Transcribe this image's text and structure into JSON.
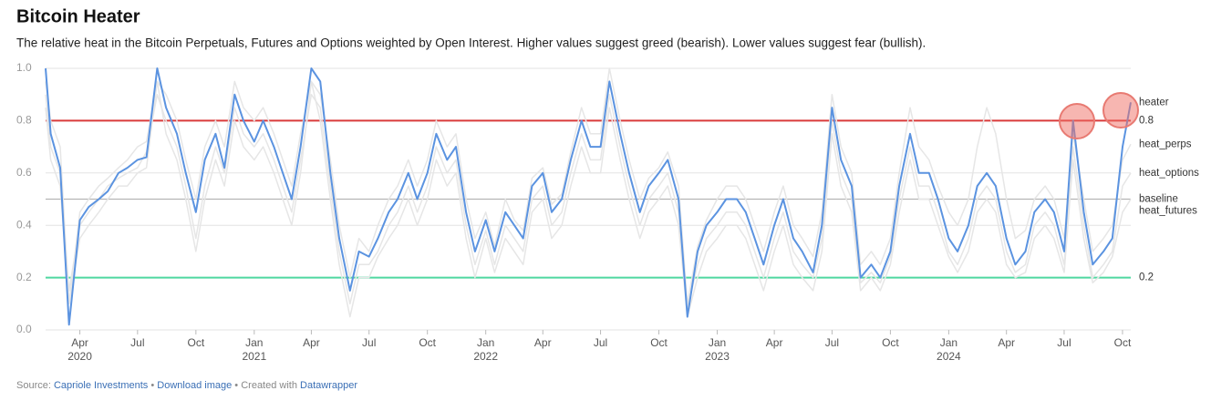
{
  "chart_data": {
    "type": "line",
    "title": "Bitcoin Heater",
    "subtitle": "The relative heat in the Bitcoin Perpetuals, Futures and Options weighted by Open Interest. Higher values suggest greed (bearish). Lower values suggest fear (bullish).",
    "x": [
      "2020-02-07",
      "2020-02-15",
      "2020-03-01",
      "2020-03-15",
      "2020-04-01",
      "2020-04-15",
      "2020-05-01",
      "2020-05-15",
      "2020-06-01",
      "2020-06-15",
      "2020-07-01",
      "2020-07-15",
      "2020-08-01",
      "2020-08-15",
      "2020-09-01",
      "2020-09-15",
      "2020-10-01",
      "2020-10-15",
      "2020-11-01",
      "2020-11-15",
      "2020-12-01",
      "2020-12-15",
      "2021-01-01",
      "2021-01-15",
      "2021-02-01",
      "2021-02-15",
      "2021-03-01",
      "2021-03-15",
      "2021-04-01",
      "2021-04-15",
      "2021-05-01",
      "2021-05-15",
      "2021-06-01",
      "2021-06-15",
      "2021-07-01",
      "2021-07-15",
      "2021-08-01",
      "2021-08-15",
      "2021-09-01",
      "2021-09-15",
      "2021-10-01",
      "2021-10-15",
      "2021-11-01",
      "2021-11-15",
      "2021-12-01",
      "2021-12-15",
      "2022-01-01",
      "2022-01-15",
      "2022-02-01",
      "2022-02-15",
      "2022-03-01",
      "2022-03-15",
      "2022-04-01",
      "2022-04-15",
      "2022-05-01",
      "2022-05-15",
      "2022-06-01",
      "2022-06-15",
      "2022-07-01",
      "2022-07-15",
      "2022-08-01",
      "2022-08-15",
      "2022-09-01",
      "2022-09-15",
      "2022-10-01",
      "2022-10-15",
      "2022-11-01",
      "2022-11-15",
      "2022-12-01",
      "2022-12-15",
      "2023-01-01",
      "2023-01-15",
      "2023-02-01",
      "2023-02-15",
      "2023-03-01",
      "2023-03-15",
      "2023-04-01",
      "2023-04-15",
      "2023-05-01",
      "2023-05-15",
      "2023-06-01",
      "2023-06-15",
      "2023-07-01",
      "2023-07-15",
      "2023-08-01",
      "2023-08-15",
      "2023-09-01",
      "2023-09-15",
      "2023-10-01",
      "2023-10-15",
      "2023-11-01",
      "2023-11-15",
      "2023-12-01",
      "2023-12-15",
      "2024-01-01",
      "2024-01-15",
      "2024-02-01",
      "2024-02-15",
      "2024-03-01",
      "2024-03-15",
      "2024-04-01",
      "2024-04-15",
      "2024-05-01",
      "2024-05-15",
      "2024-06-01",
      "2024-06-15",
      "2024-07-01",
      "2024-07-15",
      "2024-08-01",
      "2024-08-15",
      "2024-09-01",
      "2024-09-15",
      "2024-10-01",
      "2024-10-14"
    ],
    "series": [
      {
        "name": "heat_perps",
        "color": "#e6e6e6",
        "values": [
          0.95,
          0.8,
          0.7,
          0.1,
          0.45,
          0.5,
          0.55,
          0.58,
          0.62,
          0.65,
          0.7,
          0.72,
          0.95,
          0.9,
          0.8,
          0.65,
          0.5,
          0.7,
          0.8,
          0.7,
          0.95,
          0.85,
          0.8,
          0.85,
          0.75,
          0.65,
          0.55,
          0.75,
          0.95,
          0.9,
          0.65,
          0.4,
          0.2,
          0.35,
          0.3,
          0.4,
          0.5,
          0.55,
          0.65,
          0.55,
          0.65,
          0.8,
          0.7,
          0.75,
          0.5,
          0.35,
          0.45,
          0.32,
          0.5,
          0.42,
          0.38,
          0.58,
          0.62,
          0.48,
          0.52,
          0.68,
          0.85,
          0.75,
          0.75,
          1.0,
          0.8,
          0.65,
          0.5,
          0.58,
          0.62,
          0.68,
          0.55,
          0.1,
          0.32,
          0.42,
          0.5,
          0.55,
          0.55,
          0.5,
          0.4,
          0.3,
          0.45,
          0.55,
          0.4,
          0.35,
          0.28,
          0.45,
          0.9,
          0.7,
          0.6,
          0.25,
          0.3,
          0.25,
          0.35,
          0.6,
          0.85,
          0.7,
          0.65,
          0.55,
          0.45,
          0.4,
          0.5,
          0.7,
          0.85,
          0.75,
          0.5,
          0.35,
          0.38,
          0.5,
          0.55,
          0.5,
          0.35,
          0.75,
          0.5,
          0.3,
          0.35,
          0.4,
          0.65,
          0.71
        ]
      },
      {
        "name": "heat_options",
        "color": "#e6e6e6",
        "values": [
          0.9,
          0.7,
          0.6,
          0.15,
          0.4,
          0.45,
          0.5,
          0.55,
          0.58,
          0.6,
          0.62,
          0.68,
          0.9,
          0.8,
          0.7,
          0.55,
          0.35,
          0.55,
          0.7,
          0.6,
          0.85,
          0.75,
          0.7,
          0.75,
          0.65,
          0.55,
          0.45,
          0.65,
          0.9,
          0.85,
          0.55,
          0.3,
          0.1,
          0.25,
          0.25,
          0.3,
          0.4,
          0.45,
          0.55,
          0.45,
          0.55,
          0.7,
          0.6,
          0.65,
          0.4,
          0.25,
          0.38,
          0.25,
          0.4,
          0.35,
          0.3,
          0.5,
          0.55,
          0.4,
          0.45,
          0.6,
          0.75,
          0.65,
          0.65,
          0.9,
          0.7,
          0.55,
          0.4,
          0.5,
          0.55,
          0.6,
          0.45,
          0.08,
          0.25,
          0.35,
          0.4,
          0.45,
          0.45,
          0.4,
          0.3,
          0.2,
          0.35,
          0.45,
          0.3,
          0.25,
          0.2,
          0.35,
          0.8,
          0.6,
          0.5,
          0.18,
          0.22,
          0.18,
          0.28,
          0.5,
          0.7,
          0.55,
          0.55,
          0.45,
          0.3,
          0.25,
          0.35,
          0.5,
          0.55,
          0.5,
          0.3,
          0.22,
          0.25,
          0.4,
          0.45,
          0.4,
          0.25,
          0.7,
          0.4,
          0.2,
          0.25,
          0.3,
          0.55,
          0.6
        ]
      },
      {
        "name": "heat_futures",
        "color": "#e6e6e6",
        "values": [
          0.85,
          0.65,
          0.55,
          0.1,
          0.35,
          0.4,
          0.45,
          0.5,
          0.55,
          0.55,
          0.6,
          0.62,
          0.95,
          0.75,
          0.65,
          0.5,
          0.3,
          0.5,
          0.65,
          0.55,
          0.8,
          0.7,
          0.65,
          0.7,
          0.6,
          0.5,
          0.4,
          0.6,
          0.95,
          0.8,
          0.5,
          0.25,
          0.05,
          0.2,
          0.2,
          0.28,
          0.35,
          0.4,
          0.5,
          0.4,
          0.5,
          0.65,
          0.55,
          0.6,
          0.35,
          0.2,
          0.35,
          0.22,
          0.35,
          0.3,
          0.25,
          0.45,
          0.5,
          0.35,
          0.4,
          0.55,
          0.7,
          0.6,
          0.6,
          0.85,
          0.65,
          0.5,
          0.35,
          0.45,
          0.5,
          0.55,
          0.4,
          0.05,
          0.2,
          0.3,
          0.35,
          0.4,
          0.4,
          0.35,
          0.25,
          0.15,
          0.3,
          0.4,
          0.25,
          0.2,
          0.15,
          0.3,
          0.75,
          0.55,
          0.45,
          0.15,
          0.2,
          0.15,
          0.25,
          0.45,
          0.65,
          0.5,
          0.5,
          0.4,
          0.28,
          0.22,
          0.3,
          0.45,
          0.5,
          0.45,
          0.25,
          0.2,
          0.22,
          0.35,
          0.4,
          0.35,
          0.22,
          0.65,
          0.35,
          0.18,
          0.22,
          0.28,
          0.45,
          0.5
        ]
      },
      {
        "name": "heater",
        "color": "#5b93e0",
        "values": [
          1.0,
          0.75,
          0.62,
          0.02,
          0.42,
          0.47,
          0.5,
          0.53,
          0.6,
          0.62,
          0.65,
          0.66,
          1.0,
          0.85,
          0.75,
          0.6,
          0.45,
          0.65,
          0.75,
          0.62,
          0.9,
          0.8,
          0.72,
          0.8,
          0.7,
          0.6,
          0.5,
          0.7,
          1.0,
          0.95,
          0.6,
          0.35,
          0.15,
          0.3,
          0.28,
          0.35,
          0.45,
          0.5,
          0.6,
          0.5,
          0.6,
          0.75,
          0.65,
          0.7,
          0.45,
          0.3,
          0.42,
          0.3,
          0.45,
          0.4,
          0.35,
          0.55,
          0.6,
          0.45,
          0.5,
          0.65,
          0.8,
          0.7,
          0.7,
          0.95,
          0.75,
          0.6,
          0.45,
          0.55,
          0.6,
          0.65,
          0.5,
          0.05,
          0.3,
          0.4,
          0.45,
          0.5,
          0.5,
          0.45,
          0.35,
          0.25,
          0.4,
          0.5,
          0.35,
          0.3,
          0.22,
          0.4,
          0.85,
          0.65,
          0.55,
          0.2,
          0.25,
          0.2,
          0.3,
          0.55,
          0.75,
          0.6,
          0.6,
          0.5,
          0.35,
          0.3,
          0.4,
          0.55,
          0.6,
          0.55,
          0.35,
          0.25,
          0.3,
          0.45,
          0.5,
          0.45,
          0.3,
          0.8,
          0.45,
          0.25,
          0.3,
          0.35,
          0.7,
          0.87
        ]
      }
    ],
    "reference_lines": [
      {
        "name": "0.8",
        "value": 0.8,
        "color": "#d93b3b"
      },
      {
        "name": "baseline",
        "value": 0.5,
        "color": "#b5b5b5"
      },
      {
        "name": "0.2",
        "value": 0.2,
        "color": "#4fd8a0"
      }
    ],
    "xlim": [
      "2020-02-07",
      "2024-10-14"
    ],
    "xticks": [
      {
        "value": "2020-04-01",
        "label": "Apr"
      },
      {
        "value": "2020-07-01",
        "label": "Jul"
      },
      {
        "value": "2020-10-01",
        "label": "Oct"
      },
      {
        "value": "2021-01-01",
        "label": "Jan"
      },
      {
        "value": "2021-04-01",
        "label": "Apr"
      },
      {
        "value": "2021-07-01",
        "label": "Jul"
      },
      {
        "value": "2021-10-01",
        "label": "Oct"
      },
      {
        "value": "2022-01-01",
        "label": "Jan"
      },
      {
        "value": "2022-04-01",
        "label": "Apr"
      },
      {
        "value": "2022-07-01",
        "label": "Jul"
      },
      {
        "value": "2022-10-01",
        "label": "Oct"
      },
      {
        "value": "2023-01-01",
        "label": "Jan"
      },
      {
        "value": "2023-04-01",
        "label": "Apr"
      },
      {
        "value": "2023-07-01",
        "label": "Jul"
      },
      {
        "value": "2023-10-01",
        "label": "Oct"
      },
      {
        "value": "2024-01-01",
        "label": "Jan"
      },
      {
        "value": "2024-04-01",
        "label": "Apr"
      },
      {
        "value": "2024-07-01",
        "label": "Jul"
      },
      {
        "value": "2024-10-01",
        "label": "Oct"
      }
    ],
    "xtick_years": [
      {
        "value": "2020-04-01",
        "label": "2020"
      },
      {
        "value": "2021-01-01",
        "label": "2021"
      },
      {
        "value": "2022-01-01",
        "label": "2022"
      },
      {
        "value": "2023-01-01",
        "label": "2023"
      },
      {
        "value": "2024-01-01",
        "label": "2024"
      }
    ],
    "ylim": [
      0,
      1
    ],
    "yticks": [
      {
        "value": 0,
        "label": "0.0"
      },
      0.2,
      0.4,
      0.6,
      0.8,
      {
        "value": 1,
        "label": "1.0"
      }
    ],
    "grid": true,
    "footer": {
      "source_label": "Source:",
      "source": "Capriole Investments",
      "separator": "•",
      "download": "Download image",
      "created_label": "Created with",
      "created_by": "Datawrapper"
    }
  }
}
